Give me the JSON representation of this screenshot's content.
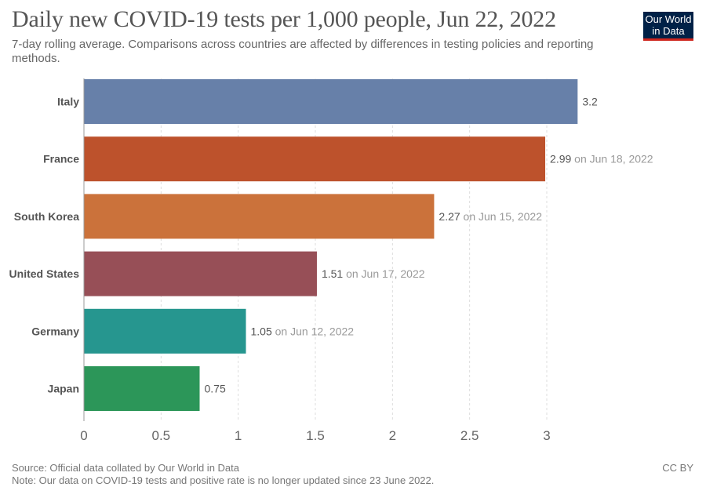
{
  "header": {
    "title": "Daily new COVID-19 tests per 1,000 people, Jun 22, 2022",
    "subtitle": "7-day rolling average. Comparisons across countries are affected by differences in testing policies and reporting methods.",
    "logo_line1": "Our World",
    "logo_line2": "in Data"
  },
  "footer": {
    "source": "Source: Official data collated by Our World in Data",
    "note": "Note: Our data on COVID-19 tests and positive rate is no longer updated since 23 June 2022.",
    "license": "CC BY"
  },
  "chart_data": {
    "type": "bar",
    "orientation": "horizontal",
    "title": "Daily new COVID-19 tests per 1,000 people, Jun 22, 2022",
    "xlabel": "",
    "ylabel": "",
    "xlim": [
      0,
      3.2
    ],
    "xticks": [
      0,
      0.5,
      1,
      1.5,
      2,
      2.5,
      3
    ],
    "xtick_labels": [
      "0",
      "0.5",
      "1",
      "1.5",
      "2",
      "2.5",
      "3"
    ],
    "grid": "vertical-dashed",
    "categories": [
      "Italy",
      "France",
      "South Korea",
      "United States",
      "Germany",
      "Japan"
    ],
    "values": [
      3.2,
      2.99,
      2.27,
      1.51,
      1.05,
      0.75
    ],
    "value_labels": [
      "3.2",
      "2.99",
      "2.27",
      "1.51",
      "1.05",
      "0.75"
    ],
    "date_notes": [
      "",
      "on Jun 18, 2022",
      "on Jun 15, 2022",
      "on Jun 17, 2022",
      "on Jun 12, 2022",
      ""
    ],
    "colors": [
      "#6780a9",
      "#bd522c",
      "#cb723b",
      "#974f57",
      "#26968f",
      "#2c9659"
    ]
  }
}
